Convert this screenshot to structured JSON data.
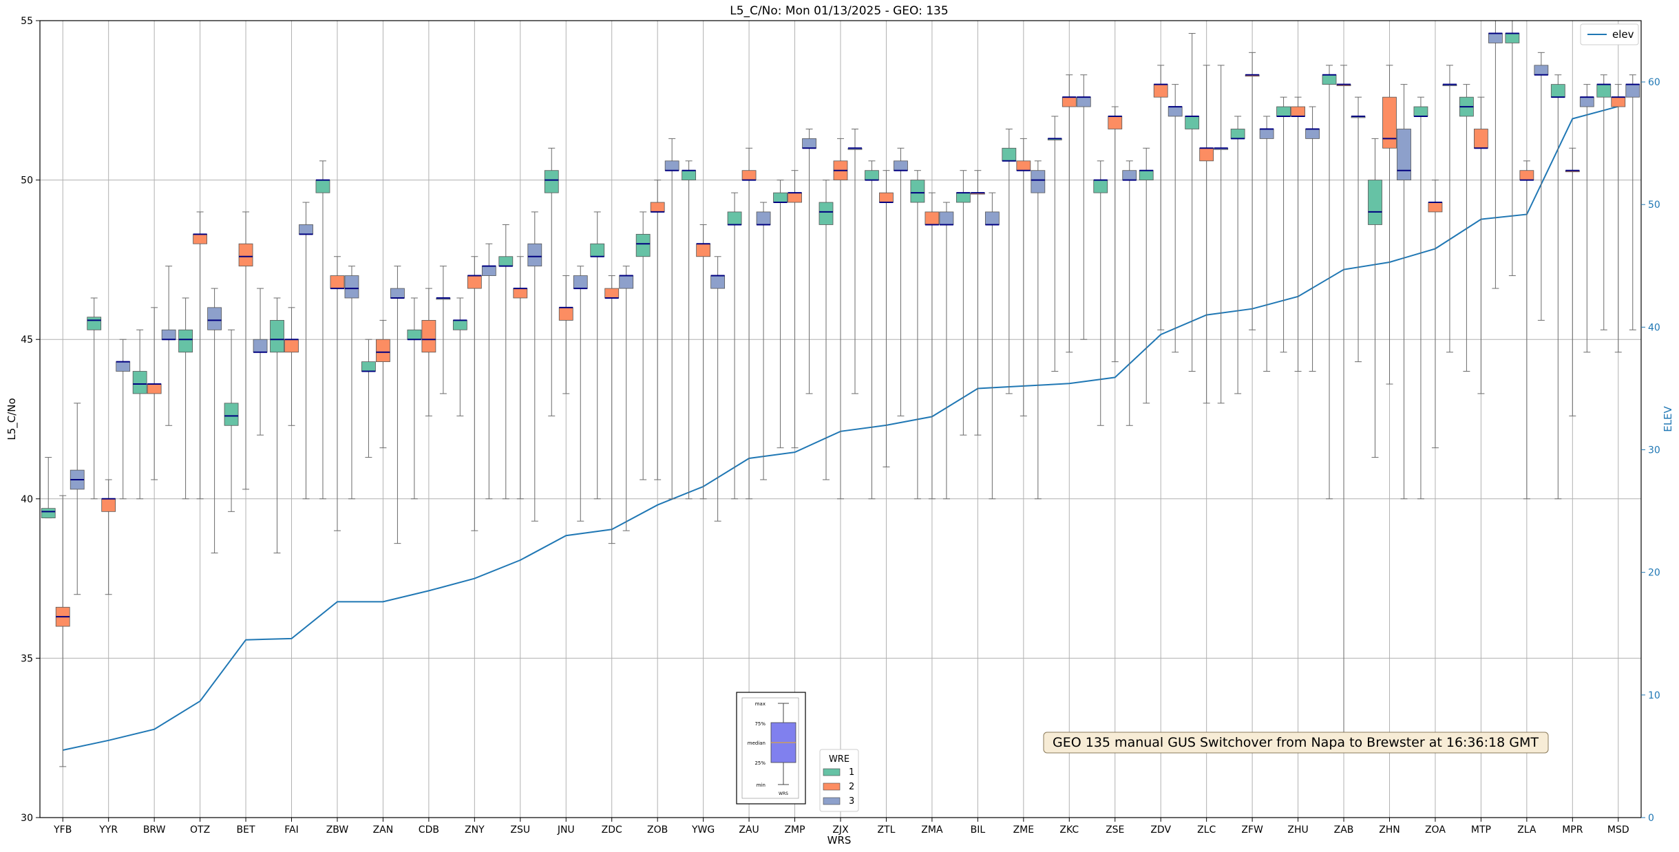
{
  "chart_data": {
    "type": "boxplot",
    "title": "L5_C/No: Mon 01/13/2025 - GEO: 135",
    "xlabel": "WRS",
    "ylabel": "L5_C/No",
    "y2label": "ELEV",
    "ylim": [
      30,
      55
    ],
    "y2lim": [
      0,
      65
    ],
    "yticks": [
      "30",
      "35",
      "40",
      "45",
      "50",
      "55"
    ],
    "y2ticks": [
      "0",
      "10",
      "20",
      "30",
      "40",
      "50",
      "60"
    ],
    "grid": true,
    "categories": [
      "YFB",
      "YYR",
      "BRW",
      "OTZ",
      "BET",
      "FAI",
      "ZBW",
      "ZAN",
      "CDB",
      "ZNY",
      "ZSU",
      "JNU",
      "ZDC",
      "ZOB",
      "YWG",
      "ZAU",
      "ZMP",
      "ZJX",
      "ZTL",
      "ZMA",
      "BIL",
      "ZME",
      "ZKC",
      "ZSE",
      "ZDV",
      "ZLC",
      "ZFW",
      "ZHU",
      "ZAB",
      "ZHN",
      "ZOA",
      "MTP",
      "ZLA",
      "MPR",
      "MSD"
    ],
    "wre_colors": {
      "1": "#66c2a5",
      "2": "#fc8d62",
      "3": "#8da0cb"
    },
    "boxes": [
      {
        "site": "YFB",
        "wre": 1,
        "min": 39.4,
        "q1": 39.4,
        "med": 39.6,
        "q3": 39.7,
        "max": 41.3
      },
      {
        "site": "YFB",
        "wre": 2,
        "min": 31.6,
        "q1": 36.0,
        "med": 36.3,
        "q3": 36.6,
        "max": 40.1
      },
      {
        "site": "YFB",
        "wre": 3,
        "min": 37.0,
        "q1": 40.3,
        "med": 40.6,
        "q3": 40.9,
        "max": 43.0
      },
      {
        "site": "YYR",
        "wre": 1,
        "min": 40.0,
        "q1": 45.3,
        "med": 45.6,
        "q3": 45.7,
        "max": 46.3
      },
      {
        "site": "YYR",
        "wre": 2,
        "min": 37.0,
        "q1": 39.6,
        "med": 40.0,
        "q3": 40.0,
        "max": 40.6
      },
      {
        "site": "YYR",
        "wre": 3,
        "min": 40.0,
        "q1": 44.0,
        "med": 44.3,
        "q3": 44.3,
        "max": 45.0
      },
      {
        "site": "BRW",
        "wre": 1,
        "min": 40.0,
        "q1": 43.3,
        "med": 43.6,
        "q3": 44.0,
        "max": 45.3
      },
      {
        "site": "BRW",
        "wre": 2,
        "min": 40.6,
        "q1": 43.3,
        "med": 43.6,
        "q3": 43.6,
        "max": 46.0
      },
      {
        "site": "BRW",
        "wre": 3,
        "min": 42.3,
        "q1": 45.0,
        "med": 45.0,
        "q3": 45.3,
        "max": 47.3
      },
      {
        "site": "OTZ",
        "wre": 1,
        "min": 40.0,
        "q1": 44.6,
        "med": 45.0,
        "q3": 45.3,
        "max": 46.3
      },
      {
        "site": "OTZ",
        "wre": 2,
        "min": 40.0,
        "q1": 48.0,
        "med": 48.3,
        "q3": 48.3,
        "max": 49.0
      },
      {
        "site": "OTZ",
        "wre": 3,
        "min": 38.3,
        "q1": 45.3,
        "med": 45.6,
        "q3": 46.0,
        "max": 46.6
      },
      {
        "site": "BET",
        "wre": 1,
        "min": 39.6,
        "q1": 42.3,
        "med": 42.6,
        "q3": 43.0,
        "max": 45.3
      },
      {
        "site": "BET",
        "wre": 2,
        "min": 40.3,
        "q1": 47.3,
        "med": 47.6,
        "q3": 48.0,
        "max": 49.0
      },
      {
        "site": "BET",
        "wre": 3,
        "min": 42.0,
        "q1": 44.6,
        "med": 44.6,
        "q3": 45.0,
        "max": 46.6
      },
      {
        "site": "FAI",
        "wre": 1,
        "min": 38.3,
        "q1": 44.6,
        "med": 45.0,
        "q3": 45.6,
        "max": 46.3
      },
      {
        "site": "FAI",
        "wre": 2,
        "min": 42.3,
        "q1": 44.6,
        "med": 45.0,
        "q3": 45.0,
        "max": 46.0
      },
      {
        "site": "FAI",
        "wre": 3,
        "min": 40.0,
        "q1": 48.3,
        "med": 48.3,
        "q3": 48.6,
        "max": 49.3
      },
      {
        "site": "ZBW",
        "wre": 1,
        "min": 40.0,
        "q1": 49.6,
        "med": 50.0,
        "q3": 50.0,
        "max": 50.6
      },
      {
        "site": "ZBW",
        "wre": 2,
        "min": 39.0,
        "q1": 46.6,
        "med": 46.6,
        "q3": 47.0,
        "max": 47.6
      },
      {
        "site": "ZBW",
        "wre": 3,
        "min": 40.0,
        "q1": 46.3,
        "med": 46.6,
        "q3": 47.0,
        "max": 47.3
      },
      {
        "site": "ZAN",
        "wre": 1,
        "min": 41.3,
        "q1": 44.0,
        "med": 44.0,
        "q3": 44.3,
        "max": 45.0
      },
      {
        "site": "ZAN",
        "wre": 2,
        "min": 41.6,
        "q1": 44.3,
        "med": 44.6,
        "q3": 45.0,
        "max": 45.6
      },
      {
        "site": "ZAN",
        "wre": 3,
        "min": 38.6,
        "q1": 46.3,
        "med": 46.3,
        "q3": 46.6,
        "max": 47.3
      },
      {
        "site": "CDB",
        "wre": 1,
        "min": 40.0,
        "q1": 45.0,
        "med": 45.0,
        "q3": 45.3,
        "max": 46.3
      },
      {
        "site": "CDB",
        "wre": 2,
        "min": 42.6,
        "q1": 44.6,
        "med": 45.0,
        "q3": 45.6,
        "max": 46.6
      },
      {
        "site": "CDB",
        "wre": 3,
        "min": 43.3,
        "q1": 46.3,
        "med": 46.3,
        "q3": 46.3,
        "max": 47.3
      },
      {
        "site": "ZNY",
        "wre": 1,
        "min": 42.6,
        "q1": 45.3,
        "med": 45.6,
        "q3": 45.6,
        "max": 46.3
      },
      {
        "site": "ZNY",
        "wre": 2,
        "min": 39.0,
        "q1": 46.6,
        "med": 47.0,
        "q3": 47.0,
        "max": 47.6
      },
      {
        "site": "ZNY",
        "wre": 3,
        "min": 40.0,
        "q1": 47.0,
        "med": 47.3,
        "q3": 47.3,
        "max": 48.0
      },
      {
        "site": "ZSU",
        "wre": 1,
        "min": 40.0,
        "q1": 47.3,
        "med": 47.3,
        "q3": 47.6,
        "max": 48.6
      },
      {
        "site": "ZSU",
        "wre": 2,
        "min": 40.0,
        "q1": 46.3,
        "med": 46.6,
        "q3": 46.6,
        "max": 47.6
      },
      {
        "site": "ZSU",
        "wre": 3,
        "min": 39.3,
        "q1": 47.3,
        "med": 47.6,
        "q3": 48.0,
        "max": 49.0
      },
      {
        "site": "JNU",
        "wre": 1,
        "min": 42.6,
        "q1": 49.6,
        "med": 50.0,
        "q3": 50.3,
        "max": 51.0
      },
      {
        "site": "JNU",
        "wre": 2,
        "min": 43.3,
        "q1": 45.6,
        "med": 46.0,
        "q3": 46.0,
        "max": 47.0
      },
      {
        "site": "JNU",
        "wre": 3,
        "min": 39.3,
        "q1": 46.6,
        "med": 46.6,
        "q3": 47.0,
        "max": 47.3
      },
      {
        "site": "ZDC",
        "wre": 1,
        "min": 40.0,
        "q1": 47.6,
        "med": 47.6,
        "q3": 48.0,
        "max": 49.0
      },
      {
        "site": "ZDC",
        "wre": 2,
        "min": 38.6,
        "q1": 46.3,
        "med": 46.3,
        "q3": 46.6,
        "max": 47.0
      },
      {
        "site": "ZDC",
        "wre": 3,
        "min": 39.0,
        "q1": 46.6,
        "med": 47.0,
        "q3": 47.0,
        "max": 47.3
      },
      {
        "site": "ZOB",
        "wre": 1,
        "min": 40.6,
        "q1": 47.6,
        "med": 48.0,
        "q3": 48.3,
        "max": 49.0
      },
      {
        "site": "ZOB",
        "wre": 2,
        "min": 40.6,
        "q1": 49.0,
        "med": 49.0,
        "q3": 49.3,
        "max": 50.0
      },
      {
        "site": "ZOB",
        "wre": 3,
        "min": 40.0,
        "q1": 50.3,
        "med": 50.3,
        "q3": 50.6,
        "max": 51.3
      },
      {
        "site": "YWG",
        "wre": 1,
        "min": 40.0,
        "q1": 50.0,
        "med": 50.3,
        "q3": 50.3,
        "max": 50.6
      },
      {
        "site": "YWG",
        "wre": 2,
        "min": 40.0,
        "q1": 47.6,
        "med": 48.0,
        "q3": 48.0,
        "max": 48.6
      },
      {
        "site": "YWG",
        "wre": 3,
        "min": 39.3,
        "q1": 46.6,
        "med": 47.0,
        "q3": 47.0,
        "max": 47.6
      },
      {
        "site": "ZAU",
        "wre": 1,
        "min": 40.0,
        "q1": 48.6,
        "med": 48.6,
        "q3": 49.0,
        "max": 49.6
      },
      {
        "site": "ZAU",
        "wre": 2,
        "min": 40.0,
        "q1": 50.0,
        "med": 50.0,
        "q3": 50.3,
        "max": 51.0
      },
      {
        "site": "ZAU",
        "wre": 3,
        "min": 40.6,
        "q1": 48.6,
        "med": 48.6,
        "q3": 49.0,
        "max": 49.3
      },
      {
        "site": "ZMP",
        "wre": 1,
        "min": 41.6,
        "q1": 49.3,
        "med": 49.3,
        "q3": 49.6,
        "max": 50.0
      },
      {
        "site": "ZMP",
        "wre": 2,
        "min": 41.6,
        "q1": 49.3,
        "med": 49.6,
        "q3": 49.6,
        "max": 50.3
      },
      {
        "site": "ZMP",
        "wre": 3,
        "min": 43.3,
        "q1": 51.0,
        "med": 51.0,
        "q3": 51.3,
        "max": 51.6
      },
      {
        "site": "ZJX",
        "wre": 1,
        "min": 40.6,
        "q1": 48.6,
        "med": 49.0,
        "q3": 49.3,
        "max": 50.0
      },
      {
        "site": "ZJX",
        "wre": 2,
        "min": 40.0,
        "q1": 50.0,
        "med": 50.3,
        "q3": 50.6,
        "max": 51.3
      },
      {
        "site": "ZJX",
        "wre": 3,
        "min": 43.3,
        "q1": 51.0,
        "med": 51.0,
        "q3": 51.0,
        "max": 51.6
      },
      {
        "site": "ZTL",
        "wre": 1,
        "min": 40.0,
        "q1": 50.0,
        "med": 50.0,
        "q3": 50.3,
        "max": 50.6
      },
      {
        "site": "ZTL",
        "wre": 2,
        "min": 41.0,
        "q1": 49.3,
        "med": 49.3,
        "q3": 49.6,
        "max": 50.3
      },
      {
        "site": "ZTL",
        "wre": 3,
        "min": 42.6,
        "q1": 50.3,
        "med": 50.3,
        "q3": 50.6,
        "max": 51.0
      },
      {
        "site": "ZMA",
        "wre": 1,
        "min": 40.0,
        "q1": 49.3,
        "med": 49.6,
        "q3": 50.0,
        "max": 50.3
      },
      {
        "site": "ZMA",
        "wre": 2,
        "min": 40.0,
        "q1": 48.6,
        "med": 48.6,
        "q3": 49.0,
        "max": 49.6
      },
      {
        "site": "ZMA",
        "wre": 3,
        "min": 40.0,
        "q1": 48.6,
        "med": 48.6,
        "q3": 49.0,
        "max": 49.3
      },
      {
        "site": "BIL",
        "wre": 1,
        "min": 42.0,
        "q1": 49.3,
        "med": 49.6,
        "q3": 49.6,
        "max": 50.3
      },
      {
        "site": "BIL",
        "wre": 2,
        "min": 42.0,
        "q1": 49.6,
        "med": 49.6,
        "q3": 49.6,
        "max": 50.3
      },
      {
        "site": "BIL",
        "wre": 3,
        "min": 40.0,
        "q1": 48.6,
        "med": 48.6,
        "q3": 49.0,
        "max": 49.6
      },
      {
        "site": "ZME",
        "wre": 1,
        "min": 43.3,
        "q1": 50.6,
        "med": 50.6,
        "q3": 51.0,
        "max": 51.6
      },
      {
        "site": "ZME",
        "wre": 2,
        "min": 42.6,
        "q1": 50.3,
        "med": 50.3,
        "q3": 50.6,
        "max": 51.3
      },
      {
        "site": "ZME",
        "wre": 3,
        "min": 40.0,
        "q1": 49.6,
        "med": 50.0,
        "q3": 50.3,
        "max": 50.6
      },
      {
        "site": "ZKC",
        "wre": 1,
        "min": 44.0,
        "q1": 51.3,
        "med": 51.3,
        "q3": 51.3,
        "max": 52.0
      },
      {
        "site": "ZKC",
        "wre": 2,
        "min": 44.6,
        "q1": 52.3,
        "med": 52.6,
        "q3": 52.6,
        "max": 53.3
      },
      {
        "site": "ZKC",
        "wre": 3,
        "min": 45.0,
        "q1": 52.3,
        "med": 52.6,
        "q3": 52.6,
        "max": 53.3
      },
      {
        "site": "ZSE",
        "wre": 1,
        "min": 42.3,
        "q1": 49.6,
        "med": 50.0,
        "q3": 50.0,
        "max": 50.6
      },
      {
        "site": "ZSE",
        "wre": 2,
        "min": 44.3,
        "q1": 51.6,
        "med": 52.0,
        "q3": 52.0,
        "max": 52.3
      },
      {
        "site": "ZSE",
        "wre": 3,
        "min": 42.3,
        "q1": 50.0,
        "med": 50.0,
        "q3": 50.3,
        "max": 50.6
      },
      {
        "site": "ZDV",
        "wre": 1,
        "min": 43.0,
        "q1": 50.0,
        "med": 50.3,
        "q3": 50.3,
        "max": 51.0
      },
      {
        "site": "ZDV",
        "wre": 2,
        "min": 45.3,
        "q1": 52.6,
        "med": 53.0,
        "q3": 53.0,
        "max": 53.6
      },
      {
        "site": "ZDV",
        "wre": 3,
        "min": 44.6,
        "q1": 52.0,
        "med": 52.3,
        "q3": 52.3,
        "max": 53.0
      },
      {
        "site": "ZLC",
        "wre": 1,
        "min": 44.0,
        "q1": 51.6,
        "med": 52.0,
        "q3": 52.0,
        "max": 54.6
      },
      {
        "site": "ZLC",
        "wre": 2,
        "min": 43.0,
        "q1": 50.6,
        "med": 51.0,
        "q3": 51.0,
        "max": 53.6
      },
      {
        "site": "ZLC",
        "wre": 3,
        "min": 43.0,
        "q1": 51.0,
        "med": 51.0,
        "q3": 51.0,
        "max": 53.6
      },
      {
        "site": "ZFW",
        "wre": 1,
        "min": 43.3,
        "q1": 51.3,
        "med": 51.3,
        "q3": 51.6,
        "max": 52.0
      },
      {
        "site": "ZFW",
        "wre": 2,
        "min": 45.3,
        "q1": 53.3,
        "med": 53.3,
        "q3": 53.3,
        "max": 54.0
      },
      {
        "site": "ZFW",
        "wre": 3,
        "min": 44.0,
        "q1": 51.3,
        "med": 51.6,
        "q3": 51.6,
        "max": 52.0
      },
      {
        "site": "ZHU",
        "wre": 1,
        "min": 44.6,
        "q1": 52.0,
        "med": 52.0,
        "q3": 52.3,
        "max": 52.6
      },
      {
        "site": "ZHU",
        "wre": 2,
        "min": 44.0,
        "q1": 52.0,
        "med": 52.0,
        "q3": 52.3,
        "max": 52.6
      },
      {
        "site": "ZHU",
        "wre": 3,
        "min": 44.0,
        "q1": 51.3,
        "med": 51.6,
        "q3": 51.6,
        "max": 52.3
      },
      {
        "site": "ZAB",
        "wre": 1,
        "min": 40.0,
        "q1": 53.0,
        "med": 53.3,
        "q3": 53.3,
        "max": 53.6
      },
      {
        "site": "ZAB",
        "wre": 2,
        "min": 32.6,
        "q1": 53.0,
        "med": 53.0,
        "q3": 53.0,
        "max": 53.6
      },
      {
        "site": "ZAB",
        "wre": 3,
        "min": 44.3,
        "q1": 52.0,
        "med": 52.0,
        "q3": 52.0,
        "max": 52.6
      },
      {
        "site": "ZHN",
        "wre": 1,
        "min": 41.3,
        "q1": 48.6,
        "med": 49.0,
        "q3": 50.0,
        "max": 51.3
      },
      {
        "site": "ZHN",
        "wre": 2,
        "min": 43.6,
        "q1": 51.0,
        "med": 51.3,
        "q3": 52.6,
        "max": 53.6
      },
      {
        "site": "ZHN",
        "wre": 3,
        "min": 40.0,
        "q1": 50.0,
        "med": 50.3,
        "q3": 51.6,
        "max": 53.0
      },
      {
        "site": "ZOA",
        "wre": 1,
        "min": 40.0,
        "q1": 52.0,
        "med": 52.0,
        "q3": 52.3,
        "max": 52.6
      },
      {
        "site": "ZOA",
        "wre": 2,
        "min": 41.6,
        "q1": 49.0,
        "med": 49.3,
        "q3": 49.3,
        "max": 50.0
      },
      {
        "site": "ZOA",
        "wre": 3,
        "min": 44.6,
        "q1": 53.0,
        "med": 53.0,
        "q3": 53.0,
        "max": 53.6
      },
      {
        "site": "MTP",
        "wre": 1,
        "min": 44.0,
        "q1": 52.0,
        "med": 52.3,
        "q3": 52.6,
        "max": 53.0
      },
      {
        "site": "MTP",
        "wre": 2,
        "min": 43.3,
        "q1": 51.0,
        "med": 51.0,
        "q3": 51.6,
        "max": 52.6
      },
      {
        "site": "MTP",
        "wre": 3,
        "min": 46.6,
        "q1": 54.3,
        "med": 54.6,
        "q3": 54.6,
        "max": 55.0
      },
      {
        "site": "ZLA",
        "wre": 1,
        "min": 47.0,
        "q1": 54.3,
        "med": 54.6,
        "q3": 54.6,
        "max": 55.0
      },
      {
        "site": "ZLA",
        "wre": 2,
        "min": 40.0,
        "q1": 50.0,
        "med": 50.0,
        "q3": 50.3,
        "max": 50.6
      },
      {
        "site": "ZLA",
        "wre": 3,
        "min": 45.6,
        "q1": 53.3,
        "med": 53.3,
        "q3": 53.6,
        "max": 54.0
      },
      {
        "site": "MPR",
        "wre": 1,
        "min": 40.0,
        "q1": 52.6,
        "med": 52.6,
        "q3": 53.0,
        "max": 53.3
      },
      {
        "site": "MPR",
        "wre": 2,
        "min": 42.6,
        "q1": 50.3,
        "med": 50.3,
        "q3": 50.3,
        "max": 51.0
      },
      {
        "site": "MPR",
        "wre": 3,
        "min": 44.6,
        "q1": 52.3,
        "med": 52.6,
        "q3": 52.6,
        "max": 53.0
      },
      {
        "site": "MSD",
        "wre": 1,
        "min": 45.3,
        "q1": 52.6,
        "med": 53.0,
        "q3": 53.0,
        "max": 53.3
      },
      {
        "site": "MSD",
        "wre": 2,
        "min": 44.6,
        "q1": 52.3,
        "med": 52.6,
        "q3": 52.6,
        "max": 53.0
      },
      {
        "site": "MSD",
        "wre": 3,
        "min": 45.3,
        "q1": 52.6,
        "med": 53.0,
        "q3": 53.0,
        "max": 53.3
      }
    ],
    "elev_series": {
      "name": "elev",
      "values": [
        5.5,
        6.3,
        7.2,
        9.5,
        14.5,
        14.6,
        17.6,
        17.6,
        18.5,
        19.5,
        21.0,
        23.0,
        23.5,
        25.5,
        27.0,
        29.3,
        29.8,
        31.5,
        32.0,
        32.7,
        35.0,
        35.2,
        35.4,
        35.9,
        39.4,
        41.0,
        41.5,
        42.5,
        44.7,
        45.3,
        46.4,
        48.8,
        49.2,
        57.0,
        58.0
      ]
    },
    "legend_top_right": "elev",
    "legend_wre": {
      "title": "WRE",
      "labels": [
        "1",
        "2",
        "3"
      ]
    },
    "annotation": "GEO 135 manual GUS Switchover from Napa to Brewster at 16:36:18 GMT",
    "inset_key": {
      "labels": [
        "max",
        "75%",
        "median",
        "25%",
        "min"
      ],
      "xlabel": "WRS"
    }
  }
}
